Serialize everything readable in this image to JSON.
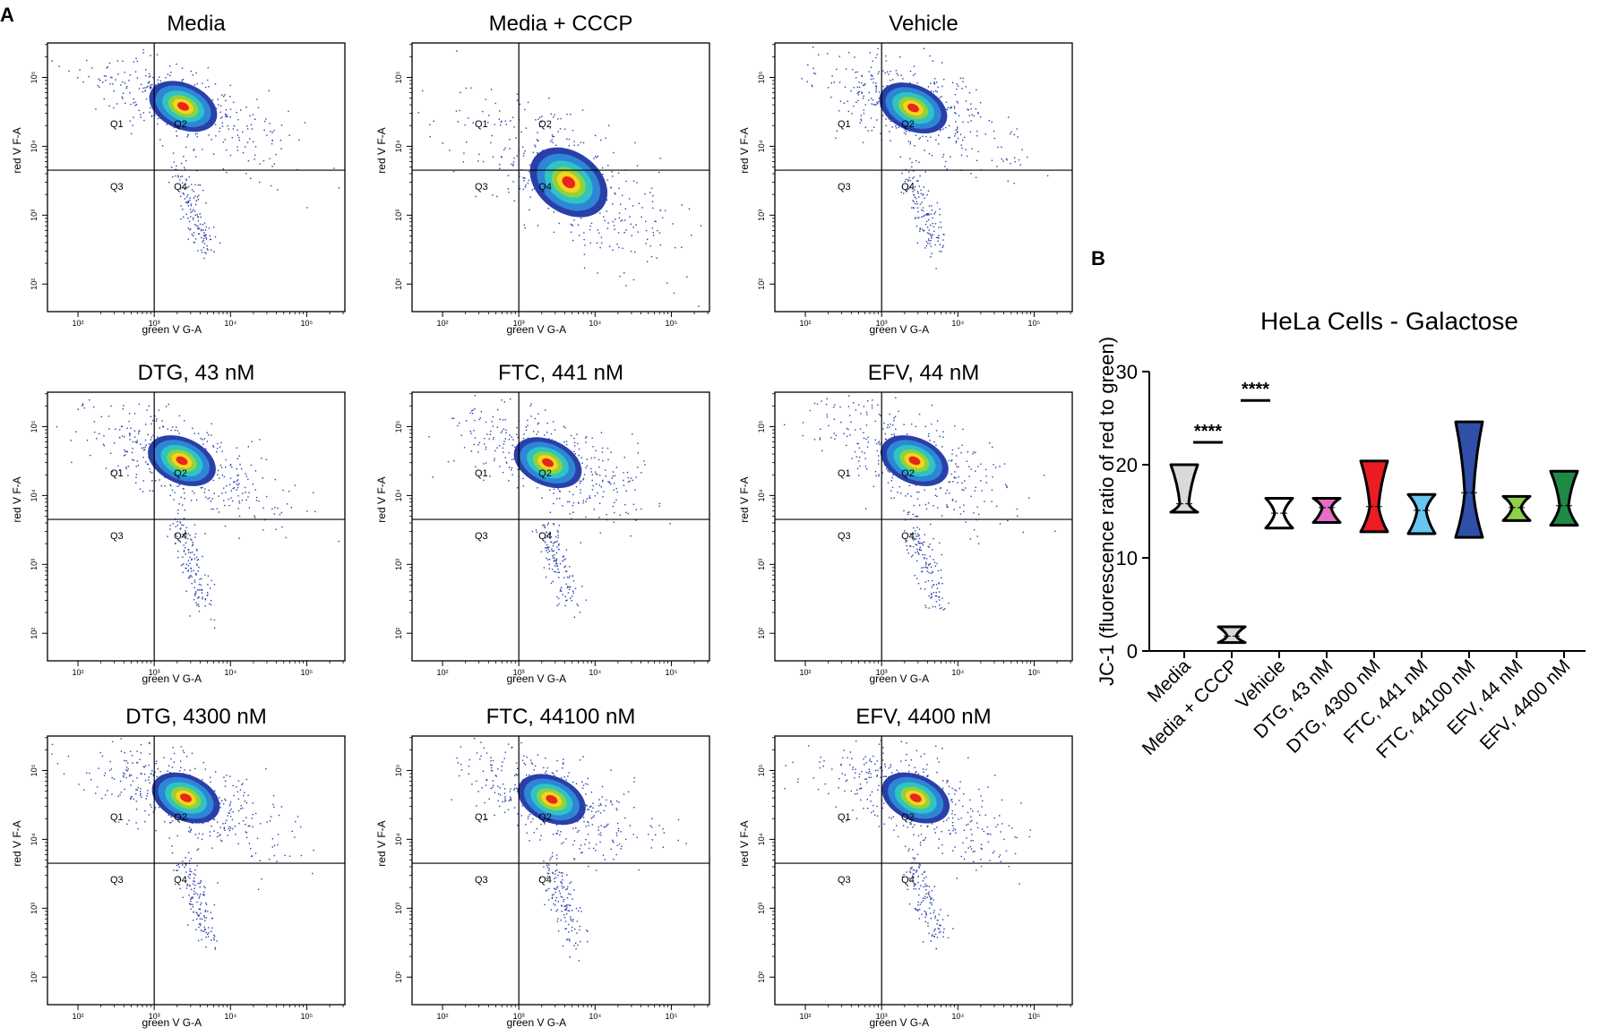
{
  "figure": {
    "panel_a_label": "A",
    "panel_b_label": "B"
  },
  "chart_data": [
    {
      "type": "scatter",
      "kind": "flow-cytometry-density-grid",
      "xlabel": "green V G-A",
      "ylabel": "red V F-A",
      "x_ticks": [
        "10²",
        "10³",
        "10⁴",
        "10⁵"
      ],
      "y_ticks": [
        "10²",
        "10³",
        "10⁴",
        "10⁵"
      ],
      "quadrants": [
        "Q1",
        "Q2",
        "Q3",
        "Q4"
      ],
      "axis_scale": "log",
      "gate_threshold": {
        "x": 1000,
        "y": 4500
      },
      "density_colors": [
        "#2a3fa8",
        "#2e86d6",
        "#2ec4c4",
        "#8fd23c",
        "#f6d31f",
        "#e8261c"
      ],
      "panels": [
        {
          "title": "Media",
          "population_center": {
            "green": 2400,
            "red": 38000
          }
        },
        {
          "title": "Media + CCCP",
          "population_center": {
            "green": 4500,
            "red": 3000
          }
        },
        {
          "title": "Vehicle",
          "population_center": {
            "green": 2600,
            "red": 36000
          }
        },
        {
          "title": "DTG, 43 nM",
          "population_center": {
            "green": 2300,
            "red": 32000
          }
        },
        {
          "title": "FTC, 441 nM",
          "population_center": {
            "green": 2400,
            "red": 30000
          }
        },
        {
          "title": "EFV, 44 nM",
          "population_center": {
            "green": 2700,
            "red": 32000
          }
        },
        {
          "title": "DTG, 4300 nM",
          "population_center": {
            "green": 2600,
            "red": 40000
          }
        },
        {
          "title": "FTC, 44100 nM",
          "population_center": {
            "green": 2700,
            "red": 38000
          }
        },
        {
          "title": "EFV, 4400 nM",
          "population_center": {
            "green": 2800,
            "red": 40000
          }
        }
      ]
    },
    {
      "type": "violin",
      "title": "HeLa Cells - Galactose",
      "xlabel": "",
      "ylabel": "JC-1 (fluorescence ratio of red to green)",
      "ylim": [
        0,
        30
      ],
      "y_ticks": [
        "0",
        "10",
        "20",
        "30"
      ],
      "y_tick_values": [
        0,
        10,
        20,
        30
      ],
      "categories": [
        "Media",
        "Media + CCCP",
        "Vehicle",
        "DTG, 43 nM",
        "DTG, 4300 nM",
        "FTC, 441 nM",
        "FTC, 44100 nM",
        "EFV, 44 nM",
        "EFV, 4400 nM"
      ],
      "series": [
        {
          "name": "Media",
          "min": 14.9,
          "max": 20.0,
          "median": 15.8,
          "color": "#d9d9d9"
        },
        {
          "name": "Media + CCCP",
          "min": 0.9,
          "max": 2.6,
          "median": 1.6,
          "color": "#d9d9d9"
        },
        {
          "name": "Vehicle",
          "min": 13.2,
          "max": 16.4,
          "median": 14.8,
          "color": "#ffffff"
        },
        {
          "name": "DTG, 43 nM",
          "min": 13.8,
          "max": 16.4,
          "median": 15.4,
          "color": "#e46ec8"
        },
        {
          "name": "DTG, 4300 nM",
          "min": 12.8,
          "max": 20.4,
          "median": 15.5,
          "color": "#ea1c24"
        },
        {
          "name": "FTC, 441 nM",
          "min": 12.6,
          "max": 16.8,
          "median": 15.1,
          "color": "#69c6f0"
        },
        {
          "name": "FTC, 44100 nM",
          "min": 12.2,
          "max": 24.6,
          "median": 17.0,
          "color": "#2f4fa8"
        },
        {
          "name": "EFV, 44 nM",
          "min": 14.0,
          "max": 16.6,
          "median": 15.4,
          "color": "#8fd04a"
        },
        {
          "name": "EFV, 4400 nM",
          "min": 13.5,
          "max": 19.3,
          "median": 15.6,
          "color": "#1f8a46"
        }
      ],
      "significance": [
        {
          "label": "****",
          "from": "Media",
          "to": "Media + CCCP",
          "y": 22.4
        },
        {
          "label": "****",
          "from": "Media + CCCP",
          "to": "Vehicle",
          "y": 26.9
        }
      ]
    }
  ]
}
